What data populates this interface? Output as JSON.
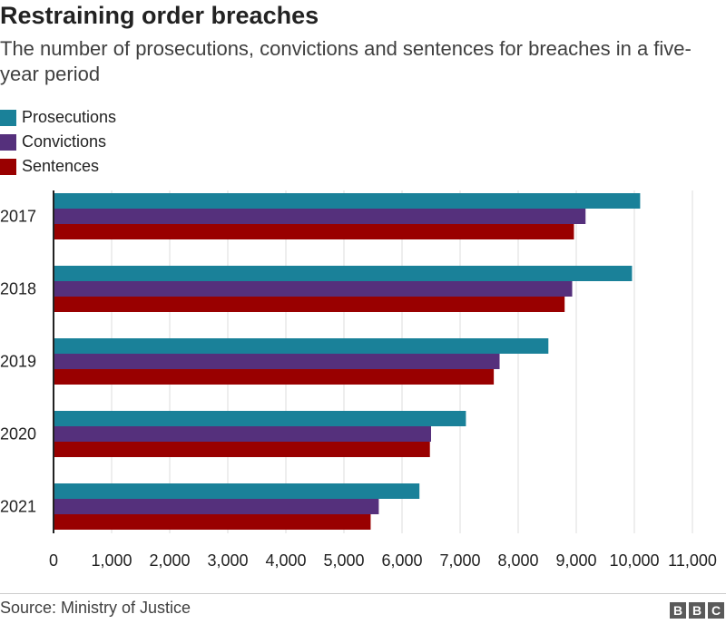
{
  "title": "Restraining order breaches",
  "subtitle": "The number of prosecutions, convictions and sentences for breaches in a five-year period",
  "source": "Source: Ministry of Justice",
  "logo": [
    "B",
    "B",
    "C"
  ],
  "colors": {
    "prosecutions": "#1a8199",
    "convictions": "#55307c",
    "sentences": "#990000",
    "grid": "#dddddd",
    "axis": "#222222"
  },
  "chart_data": {
    "type": "bar",
    "orientation": "horizontal",
    "categories": [
      "2017",
      "2018",
      "2019",
      "2020",
      "2021"
    ],
    "series": [
      {
        "name": "Prosecutions",
        "color": "#1a8199",
        "values": [
          10100,
          9960,
          8520,
          7100,
          6300
        ]
      },
      {
        "name": "Convictions",
        "color": "#55307c",
        "values": [
          9160,
          8930,
          7680,
          6500,
          5600
        ]
      },
      {
        "name": "Sentences",
        "color": "#990000",
        "values": [
          8960,
          8800,
          7580,
          6480,
          5460
        ]
      }
    ],
    "xlim": [
      0,
      11000
    ],
    "xticks": [
      0,
      1000,
      2000,
      3000,
      4000,
      5000,
      6000,
      7000,
      8000,
      9000,
      10000,
      11000
    ],
    "xtick_labels": [
      "0",
      "1,000",
      "2,000",
      "3,000",
      "4,000",
      "5,000",
      "6,000",
      "7,000",
      "8,000",
      "9,000",
      "10,000",
      "11,000"
    ],
    "title": "Restraining order breaches",
    "xlabel": "",
    "ylabel": "",
    "grid": true,
    "legend_position": "top-left"
  }
}
